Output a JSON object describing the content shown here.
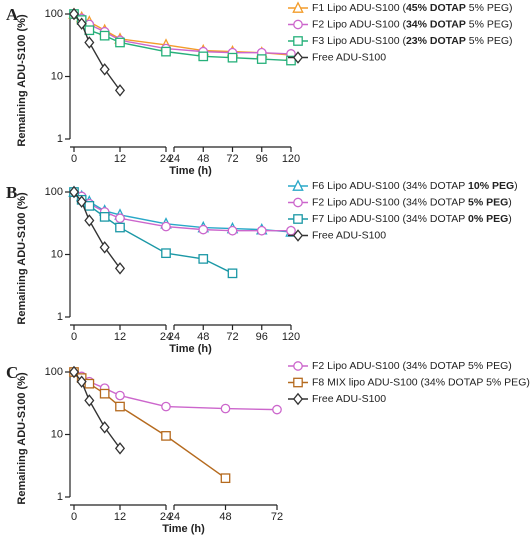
{
  "chart_data": [
    {
      "type": "line",
      "panel": "A",
      "ylabel": "Remaining ADU-S100 (%)",
      "xlabel": "Time (h)",
      "log": true,
      "ylim": [
        1,
        100
      ],
      "yticks": [
        1,
        10,
        100
      ],
      "xsegments": [
        {
          "xlim": [
            0,
            24
          ],
          "xticks": [
            0,
            12,
            24
          ]
        },
        {
          "xlim": [
            24,
            120
          ],
          "xticks": [
            24,
            48,
            72,
            96,
            120
          ]
        }
      ],
      "series": [
        {
          "name": "F1 Lipo ADU-S100 (45% DOTAP 5% PEG)",
          "name_bold": "45% DOTAP",
          "color": "#f39c2a",
          "marker": "triangle",
          "x": [
            0,
            2,
            4,
            8,
            12,
            24,
            48,
            72,
            96,
            120
          ],
          "values": [
            100,
            88,
            75,
            55,
            40,
            32,
            26,
            25,
            24,
            22
          ]
        },
        {
          "name": "F2 Lipo ADU-S100 (34% DOTAP 5% PEG)",
          "name_bold": "34% DOTAP",
          "color": "#cc66cc",
          "marker": "circle",
          "x": [
            0,
            2,
            4,
            8,
            12,
            24,
            48,
            72,
            96,
            120
          ],
          "values": [
            100,
            85,
            68,
            52,
            38,
            28,
            25,
            24,
            24,
            23
          ]
        },
        {
          "name": "F3 Lipo ADU-S100 (23% DOTAP 5% PEG)",
          "name_bold": "23% DOTAP",
          "color": "#26b07a",
          "marker": "square",
          "x": [
            0,
            2,
            4,
            8,
            12,
            24,
            48,
            72,
            96,
            120
          ],
          "values": [
            100,
            80,
            55,
            45,
            35,
            25,
            21,
            20,
            19,
            18
          ]
        },
        {
          "name": "Free ADU-S100",
          "color": "#333333",
          "marker": "diamond",
          "x": [
            0,
            2,
            4,
            8,
            12
          ],
          "values": [
            100,
            70,
            35,
            13,
            6
          ]
        }
      ]
    },
    {
      "type": "line",
      "panel": "B",
      "ylabel": "Remaining ADU-S100 (%)",
      "xlabel": "Time (h)",
      "log": true,
      "ylim": [
        1,
        100
      ],
      "yticks": [
        1,
        10,
        100
      ],
      "xsegments": [
        {
          "xlim": [
            0,
            24
          ],
          "xticks": [
            0,
            12,
            24
          ]
        },
        {
          "xlim": [
            24,
            120
          ],
          "xticks": [
            24,
            48,
            72,
            96,
            120
          ]
        }
      ],
      "series": [
        {
          "name": "F6 Lipo ADU-S100 (34% DOTAP 10% PEG)",
          "name_bold": "10% PEG",
          "color": "#29a8c8",
          "marker": "triangle",
          "x": [
            0,
            2,
            4,
            8,
            12,
            24,
            48,
            72,
            96,
            120
          ],
          "values": [
            100,
            85,
            70,
            50,
            43,
            31,
            27,
            26,
            25,
            23
          ]
        },
        {
          "name": "F2 Lipo ADU-S100 (34% DOTAP 5% PEG)",
          "name_bold": "5% PEG",
          "color": "#cc66cc",
          "marker": "circle",
          "x": [
            0,
            2,
            4,
            8,
            12,
            24,
            48,
            72,
            96,
            120
          ],
          "values": [
            100,
            85,
            65,
            48,
            38,
            28,
            25,
            24,
            24,
            24
          ]
        },
        {
          "name": "F7 Lipo ADU-S100 (34% DOTAP 0% PEG)",
          "name_bold": "0% PEG",
          "color": "#1b98a6",
          "marker": "square",
          "x": [
            0,
            2,
            4,
            8,
            12,
            24,
            48,
            72
          ],
          "values": [
            100,
            75,
            60,
            40,
            27,
            10.5,
            8.5,
            5
          ]
        },
        {
          "name": "Free ADU-S100",
          "color": "#333333",
          "marker": "diamond",
          "x": [
            0,
            2,
            4,
            8,
            12
          ],
          "values": [
            100,
            70,
            35,
            13,
            6
          ]
        }
      ]
    },
    {
      "type": "line",
      "panel": "C",
      "ylabel": "Remaining ADU-S100 (%)",
      "xlabel": "Time (h)",
      "log": true,
      "ylim": [
        1,
        100
      ],
      "yticks": [
        1,
        10,
        100
      ],
      "xsegments": [
        {
          "xlim": [
            0,
            24
          ],
          "xticks": [
            0,
            12,
            24
          ]
        },
        {
          "xlim": [
            24,
            72
          ],
          "xticks": [
            24,
            48,
            72
          ]
        }
      ],
      "series": [
        {
          "name": "F2 Lipo ADU-S100 (34% DOTAP 5% PEG)",
          "color": "#cc66cc",
          "marker": "circle",
          "x": [
            0,
            2,
            4,
            8,
            12,
            24,
            48,
            72
          ],
          "values": [
            100,
            85,
            70,
            55,
            42,
            28,
            26,
            25
          ]
        },
        {
          "name": "F8 MIX lipo ADU-S100 (34% DOTAP 5% PEG)",
          "color": "#b56a1e",
          "marker": "square",
          "x": [
            0,
            2,
            4,
            8,
            12,
            24,
            48
          ],
          "values": [
            100,
            80,
            65,
            45,
            28,
            9.5,
            2
          ]
        },
        {
          "name": "Free ADU-S100",
          "color": "#333333",
          "marker": "diamond",
          "x": [
            0,
            2,
            4,
            8,
            12
          ],
          "values": [
            100,
            70,
            35,
            13,
            6
          ]
        }
      ]
    }
  ]
}
